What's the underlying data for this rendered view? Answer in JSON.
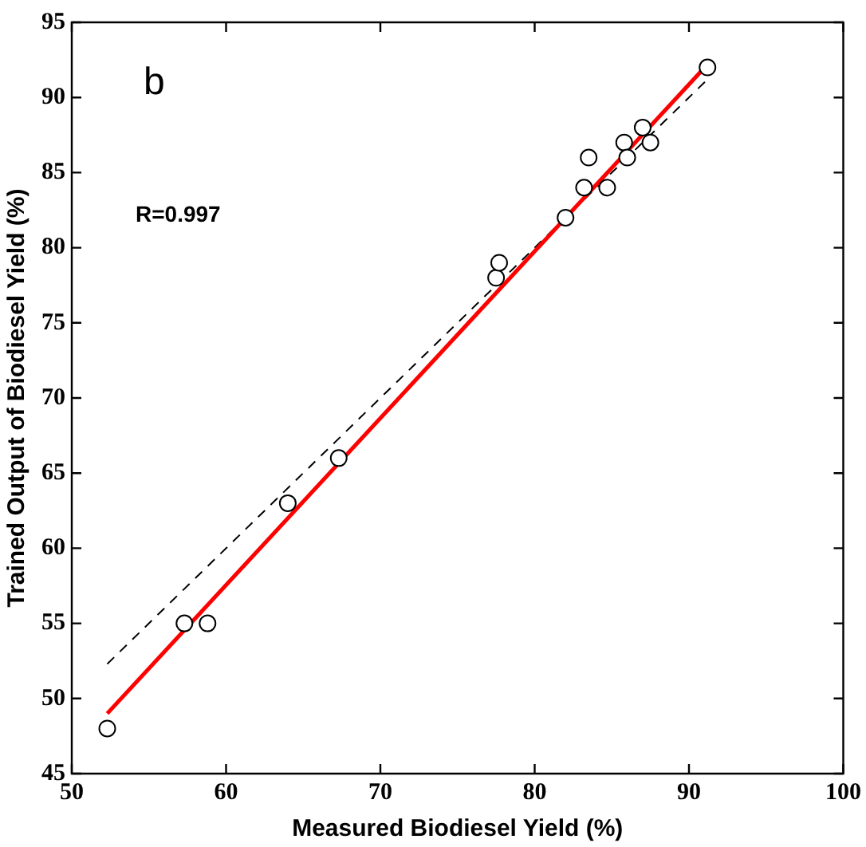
{
  "chart_data": {
    "type": "scatter",
    "xlabel": "Measured Biodiesel Yield (%)",
    "ylabel": "Trained Output of Biodiesel Yield (%)",
    "annotations": [
      "b",
      "R=0.997"
    ],
    "xlim": [
      50,
      100
    ],
    "xticks": [
      50,
      60,
      70,
      80,
      90,
      100
    ],
    "ylim": [
      45,
      95
    ],
    "yticks": [
      45,
      50,
      55,
      60,
      65,
      70,
      75,
      80,
      85,
      90,
      95
    ],
    "grid": false,
    "legend": false,
    "marker": "circle",
    "series": [
      {
        "color": "#000000",
        "x": [
          52.3,
          57.3,
          58.8,
          64,
          67.3,
          77.5,
          77.7,
          82,
          83.2,
          83.5,
          84.7,
          85.8,
          86,
          87,
          87.5,
          91.2
        ],
        "values": [
          48,
          55,
          55,
          63,
          66,
          78,
          79,
          82,
          84,
          86,
          84,
          87,
          86,
          88,
          87,
          92
        ]
      },
      {
        "type": "line",
        "color": "#ff0000",
        "line_style": "solid",
        "marker": "none",
        "x": [
          52.3,
          91.2
        ],
        "values": [
          49,
          92.2
        ]
      },
      {
        "type": "line",
        "color": "#000000",
        "line_style": "dashed",
        "marker": "none",
        "x": [
          52.3,
          91.2
        ],
        "values": [
          52.3,
          91.2
        ]
      }
    ]
  }
}
